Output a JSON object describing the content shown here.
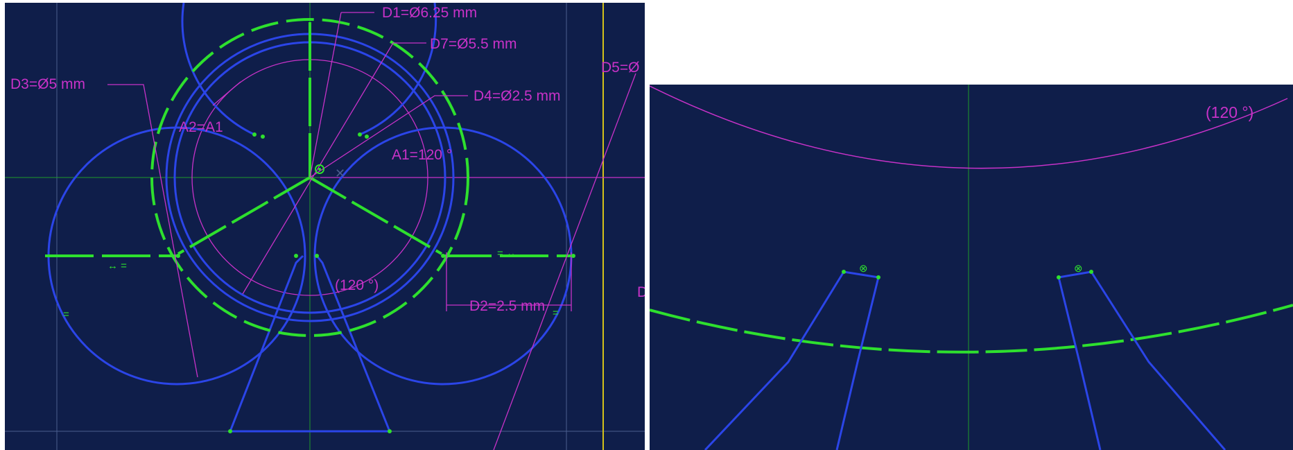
{
  "colors": {
    "background": "#0f1e4a",
    "geometry": "#2b45e8",
    "construction": "#2ee02e",
    "dimension": "#c832c8",
    "axis": "#1f9a2a",
    "border": "#d4c21a",
    "grid": "#4b5e8e"
  },
  "left_view": {
    "dimensions": {
      "d1": "D1=Ø6.25 mm",
      "d7": "D7=Ø5.5 mm",
      "d3": "D3=Ø5 mm",
      "d4": "D4=Ø2.5 mm",
      "d5": "D5=Ø",
      "d2": "D2=2.5 mm",
      "a2": "A2=A1",
      "a1": "A1=120 °",
      "angle_ref": "(120 °)",
      "d_cut": "D"
    },
    "constraints": {
      "equal_left": "↔ =",
      "equal_right": "= ↔",
      "equal_single": "=",
      "equal_single_right": "="
    }
  },
  "right_view": {
    "angle_ref": "(120 °)"
  }
}
